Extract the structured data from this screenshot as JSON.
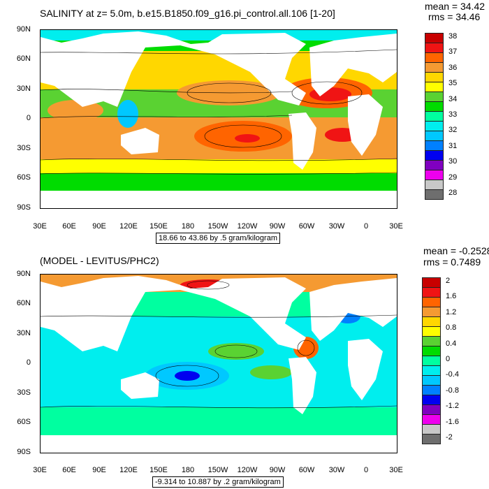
{
  "panel1": {
    "title": "SALINITY at z=   5.0m, b.e15.B1850.f09_g16.pi_control.all.106 [1-20]",
    "mean": "mean = 34.42",
    "rms": "rms = 34.46",
    "info": "18.66 to 43.86 by .5 gram/kilogram",
    "y_ticks": [
      "90N",
      "60N",
      "30N",
      "0",
      "30S",
      "60S",
      "90S"
    ],
    "x_ticks": [
      "30E",
      "60E",
      "90E",
      "120E",
      "150E",
      "180",
      "150W",
      "120W",
      "90W",
      "60W",
      "30W",
      "0",
      "30E"
    ],
    "colorbar_labels": [
      "38",
      "37",
      "36",
      "35",
      "34",
      "33",
      "32",
      "31",
      "30",
      "29",
      "28"
    ],
    "colorbar_colors": [
      "#c80000",
      "#f01414",
      "#ff6400",
      "#f59a32",
      "#ffd700",
      "#ffff00",
      "#5ad232",
      "#00dc00",
      "#00ffa0",
      "#00eeee",
      "#00c8ff",
      "#0080ff",
      "#0000f0",
      "#8000c0",
      "#ee00ee",
      "#c8c8c8",
      "#6e6e6e"
    ]
  },
  "panel2": {
    "title": "(MODEL - LEVITUS/PHC2)",
    "mean": "mean = -0.2528",
    "rms": "rms = 0.7489",
    "info": "-9.314 to 10.887 by .2 gram/kilogram",
    "y_ticks": [
      "90N",
      "60N",
      "30N",
      "0",
      "30S",
      "60S",
      "90S"
    ],
    "x_ticks": [
      "30E",
      "60E",
      "90E",
      "120E",
      "150E",
      "180",
      "150W",
      "120W",
      "90W",
      "60W",
      "30W",
      "0",
      "30E"
    ],
    "colorbar_labels": [
      "2",
      "1.6",
      "1.2",
      "0.8",
      "0.4",
      "0",
      "-0.4",
      "-0.8",
      "-1.2",
      "-1.6",
      "-2"
    ],
    "colorbar_colors": [
      "#c80000",
      "#f01414",
      "#ff6400",
      "#f59a32",
      "#ffd700",
      "#ffff00",
      "#5ad232",
      "#00dc00",
      "#00ffa0",
      "#00eeee",
      "#00c8ff",
      "#0080ff",
      "#0000f0",
      "#8000c0",
      "#ee00ee",
      "#c8c8c8",
      "#6e6e6e"
    ]
  }
}
